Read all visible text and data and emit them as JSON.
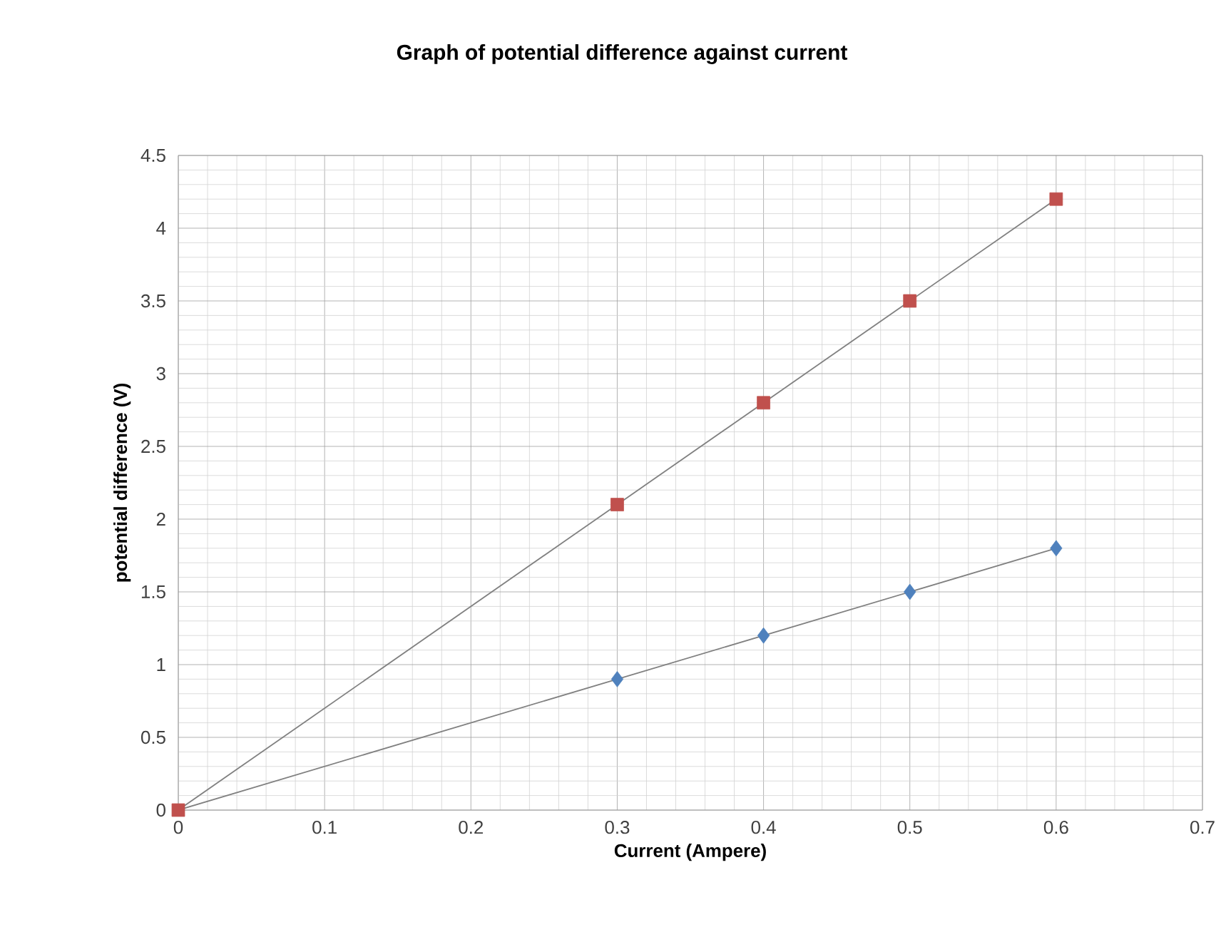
{
  "chart_data": {
    "type": "scatter",
    "title": "**Graph of potential difference against current**",
    "xlabel": "**Current (Ampere)**",
    "ylabel": "**potential difference (V)**",
    "xlim": [
      0,
      0.7
    ],
    "ylim": [
      0,
      4.5
    ],
    "xticks": [
      0,
      0.1,
      0.2,
      0.3,
      0.4,
      0.5,
      0.6,
      0.7
    ],
    "yticks": [
      0,
      0.5,
      1,
      1.5,
      2,
      2.5,
      3,
      3.5,
      4,
      4.5
    ],
    "grid": true,
    "series": [
      {
        "type": "line",
        "color": "#808080",
        "marker": "none",
        "x": [
          0,
          0.6
        ],
        "values": [
          0,
          1.8
        ]
      },
      {
        "type": "line",
        "color": "#808080",
        "marker": "none",
        "x": [
          0,
          0.6
        ],
        "values": [
          0,
          4.2
        ]
      },
      {
        "color": "#4f81bd",
        "marker": "diamond",
        "x": [
          0.3,
          0.4,
          0.5,
          0.6
        ],
        "values": [
          0.9,
          1.2,
          1.5,
          1.8
        ]
      },
      {
        "color": "#c0504d",
        "marker": "square",
        "x": [
          0,
          0.3,
          0.4,
          0.5,
          0.6
        ],
        "values": [
          0,
          2.1,
          2.8,
          3.5,
          4.2
        ]
      }
    ]
  }
}
